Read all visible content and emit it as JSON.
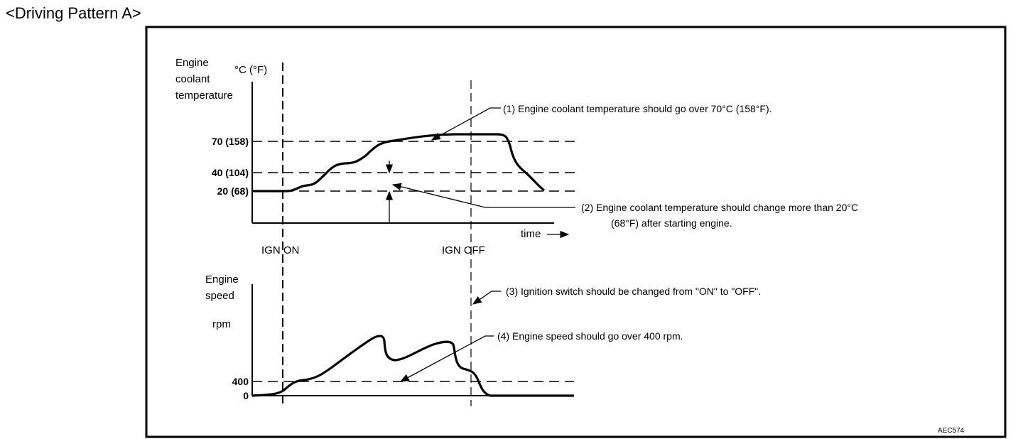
{
  "title": "<Driving Pattern A>",
  "top_chart": {
    "ylabel_lines": [
      "Engine",
      "coolant",
      "temperature"
    ],
    "unit": "°C (°F)",
    "ticks": [
      "70 (158)",
      "40 (104)",
      "20 (68)"
    ],
    "xlabel": "time",
    "markers": [
      "IGN ON",
      "IGN OFF"
    ]
  },
  "bottom_chart": {
    "ylabel_lines": [
      "Engine",
      "speed"
    ],
    "unit": "rpm",
    "ticks": [
      "400",
      "0"
    ]
  },
  "notes": {
    "n1": "(1)   Engine coolant temperature should go over 70°C (158°F).",
    "n2_line1": "(2)   Engine coolant temperature should change more than 20°C",
    "n2_line2": "(68°F) after starting engine.",
    "n3": "(3)   Ignition switch should be changed from \"ON\" to \"OFF\".",
    "n4": "(4)   Engine speed should go over 400 rpm."
  },
  "figure_code": "AEC574"
}
